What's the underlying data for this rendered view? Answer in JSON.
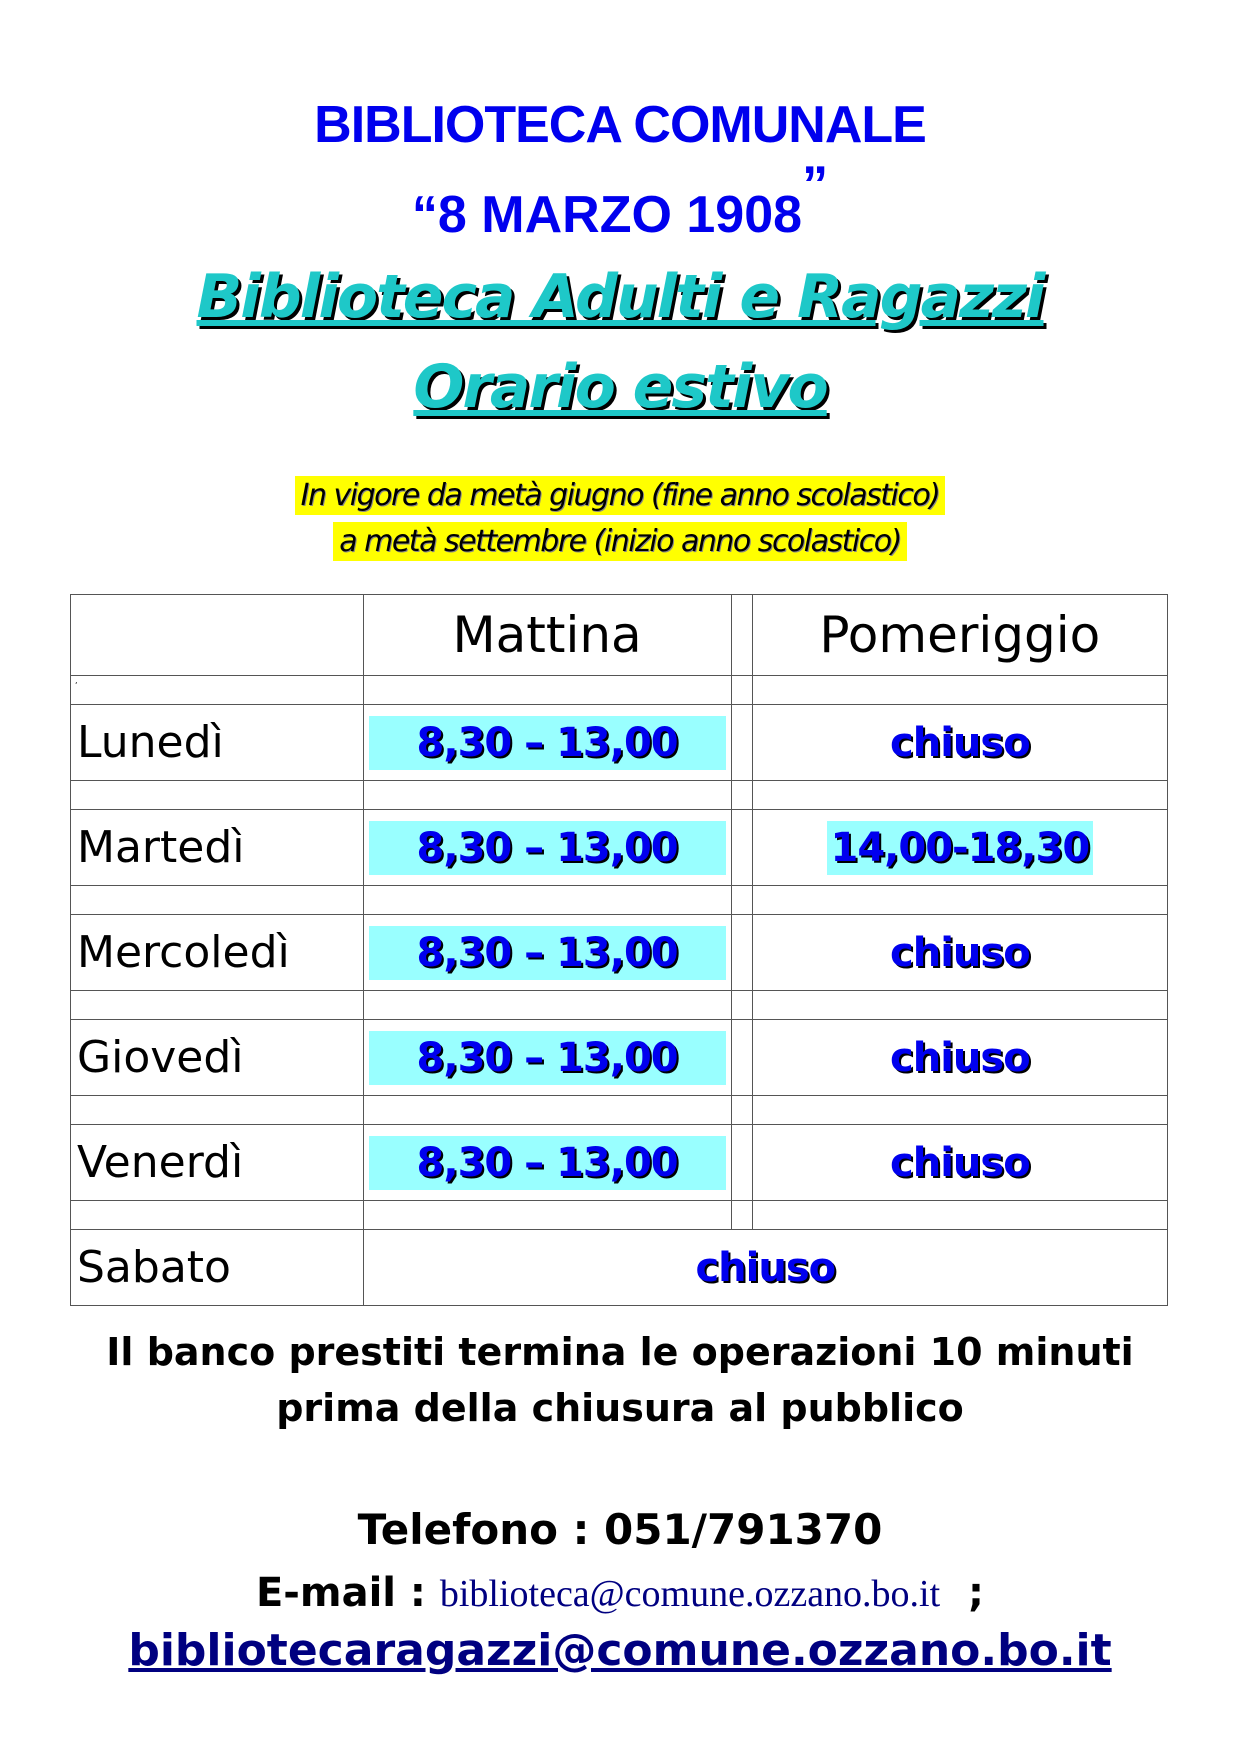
{
  "header": {
    "line1": "BIBLIOTECA COMUNALE",
    "open_quote": "“",
    "line2": "8 MARZO 1908",
    "close_quote": "”",
    "line3": "Biblioteca  Adulti e Ragazzi",
    "line4": "Orario estivo"
  },
  "validity": {
    "line1": "In vigore da metà giugno (fine anno scolastico)",
    "line2": "a metà settembre (inizio anno scolastico)"
  },
  "table": {
    "columns": [
      "",
      "Mattina",
      "Pomeriggio"
    ],
    "spacer_mark": ",",
    "rows": [
      {
        "day": "Lunedì",
        "morning": "8,30 – 13,00",
        "afternoon": "chiuso"
      },
      {
        "day": "Martedì",
        "morning": "8,30 – 13,00",
        "afternoon": "14,00-18,30"
      },
      {
        "day": "Mercoledì",
        "morning": "8,30 – 13,00",
        "afternoon": "chiuso"
      },
      {
        "day": "Giovedì",
        "morning": "8,30 – 13,00",
        "afternoon": "chiuso"
      },
      {
        "day": "Venerdì",
        "morning": "8,30 – 13,00",
        "afternoon": "chiuso"
      }
    ],
    "saturday": {
      "day": "Sabato",
      "value": "chiuso"
    }
  },
  "footer": {
    "note1": "Il banco prestiti termina le operazioni 10 minuti",
    "note2": "prima della chiusura al pubblico",
    "phone_label": "Telefono : 051/791370",
    "email_label": "E-mail : ",
    "email1": "biblioteca@comune.ozzano.bo.it",
    "separator": ";",
    "email2": "bibliotecaragazzi@comune.ozzano.bo.it"
  },
  "colors": {
    "title_blue": "#0000ee",
    "title_cyan": "#1ec8c8",
    "highlight_yellow": "#ffff00",
    "cell_cyan": "#99ffff",
    "link": "#000080"
  }
}
